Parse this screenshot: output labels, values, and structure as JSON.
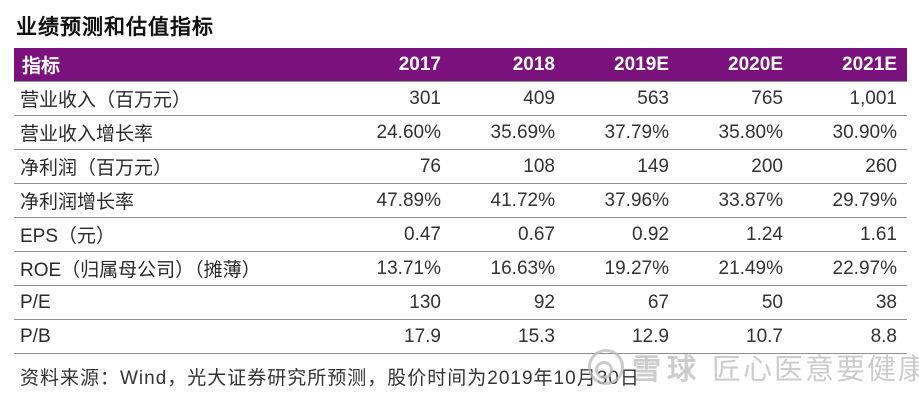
{
  "theme": {
    "accent": "#7b117c",
    "header_text": "#ffffff",
    "watermark_color": "#bcbcbc",
    "row_border": "#8f8f8f"
  },
  "chart_data": {
    "type": "table",
    "title": "业绩预测和估值指标",
    "columns": [
      "指标",
      "2017",
      "2018",
      "2019E",
      "2020E",
      "2021E"
    ],
    "rows": [
      {
        "label": "营业收入（百万元）",
        "values": [
          "301",
          "409",
          "563",
          "765",
          "1,001"
        ]
      },
      {
        "label": "营业收入增长率",
        "values": [
          "24.60%",
          "35.69%",
          "37.79%",
          "35.80%",
          "30.90%"
        ]
      },
      {
        "label": "净利润（百万元）",
        "values": [
          "76",
          "108",
          "149",
          "200",
          "260"
        ]
      },
      {
        "label": "净利润增长率",
        "values": [
          "47.89%",
          "41.72%",
          "37.96%",
          "33.87%",
          "29.79%"
        ]
      },
      {
        "label": "EPS（元）",
        "values": [
          "0.47",
          "0.67",
          "0.92",
          "1.24",
          "1.61"
        ]
      },
      {
        "label": "ROE（归属母公司）（摊薄）",
        "values": [
          "13.71%",
          "16.63%",
          "19.27%",
          "21.49%",
          "22.97%"
        ]
      },
      {
        "label": "P/E",
        "values": [
          "130",
          "92",
          "67",
          "50",
          "38"
        ]
      },
      {
        "label": "P/B",
        "values": [
          "17.9",
          "15.3",
          "12.9",
          "10.7",
          "8.8"
        ]
      }
    ],
    "source": "资料来源：Wind，光大证券研究所预测，股价时间为2019年10月30日",
    "legend_position": "none",
    "grid": "horizontal-row-rules"
  },
  "footer": {
    "source_text": "资料来源：Wind，光大证券研究所预测，股价时间为2019年10月30日"
  },
  "watermark": {
    "brand": "雪球",
    "user": "匠心医意要健康",
    "logo": "xueqiu-snowball-circle"
  }
}
